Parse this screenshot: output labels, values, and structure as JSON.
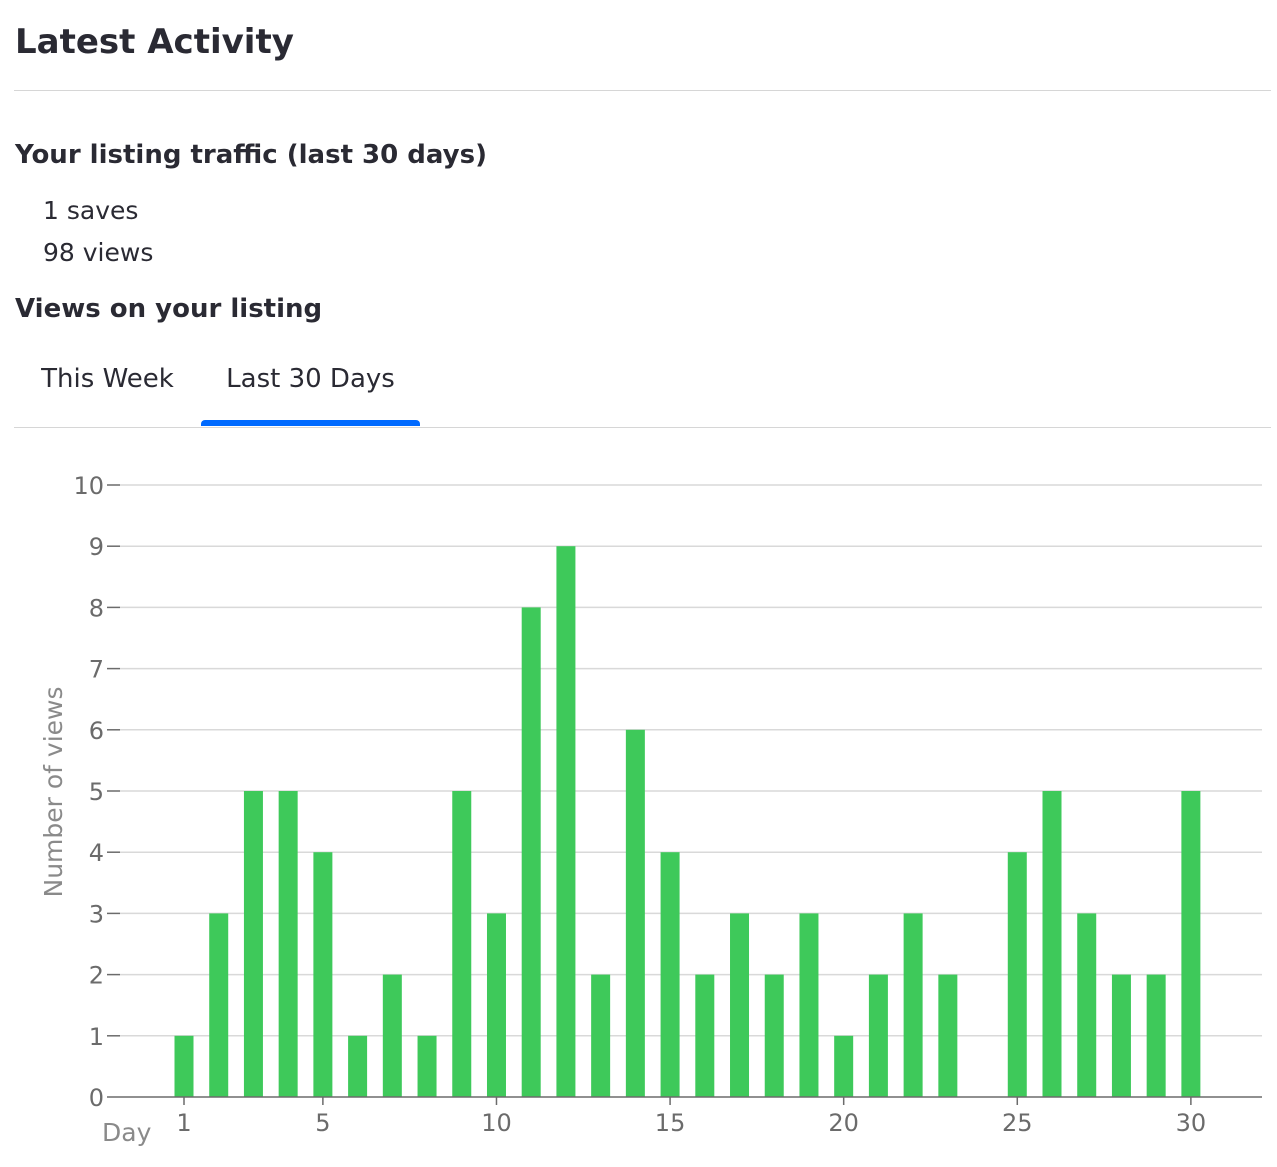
{
  "header": {
    "title": "Latest Activity"
  },
  "traffic": {
    "heading": "Your listing traffic (last 30 days)",
    "saves_text": "1 saves",
    "views_text": "98 views"
  },
  "views_section": {
    "heading": "Views on your listing",
    "tabs": [
      {
        "label": "This Week",
        "active": false
      },
      {
        "label": "Last 30 Days",
        "active": true
      }
    ]
  },
  "colors": {
    "bar": "#3ec95a",
    "tab_indicator": "#006aff",
    "gridline": "#d9d9d9"
  },
  "chart_data": {
    "type": "bar",
    "x": [
      1,
      2,
      3,
      4,
      5,
      6,
      7,
      8,
      9,
      10,
      11,
      12,
      13,
      14,
      15,
      16,
      17,
      18,
      19,
      20,
      21,
      22,
      23,
      24,
      25,
      26,
      27,
      28,
      29,
      30
    ],
    "values": [
      1,
      3,
      5,
      5,
      4,
      1,
      2,
      1,
      5,
      3,
      8,
      9,
      2,
      6,
      4,
      2,
      3,
      2,
      3,
      1,
      2,
      3,
      2,
      0,
      4,
      5,
      3,
      2,
      2,
      5
    ],
    "xlabel": "Day",
    "ylabel": "Number of views",
    "xticks": [
      1,
      5,
      10,
      15,
      20,
      25,
      30
    ],
    "ylim": [
      0,
      10
    ],
    "yticks": [
      0,
      1,
      2,
      3,
      4,
      5,
      6,
      7,
      8,
      9,
      10
    ],
    "grid": true
  }
}
